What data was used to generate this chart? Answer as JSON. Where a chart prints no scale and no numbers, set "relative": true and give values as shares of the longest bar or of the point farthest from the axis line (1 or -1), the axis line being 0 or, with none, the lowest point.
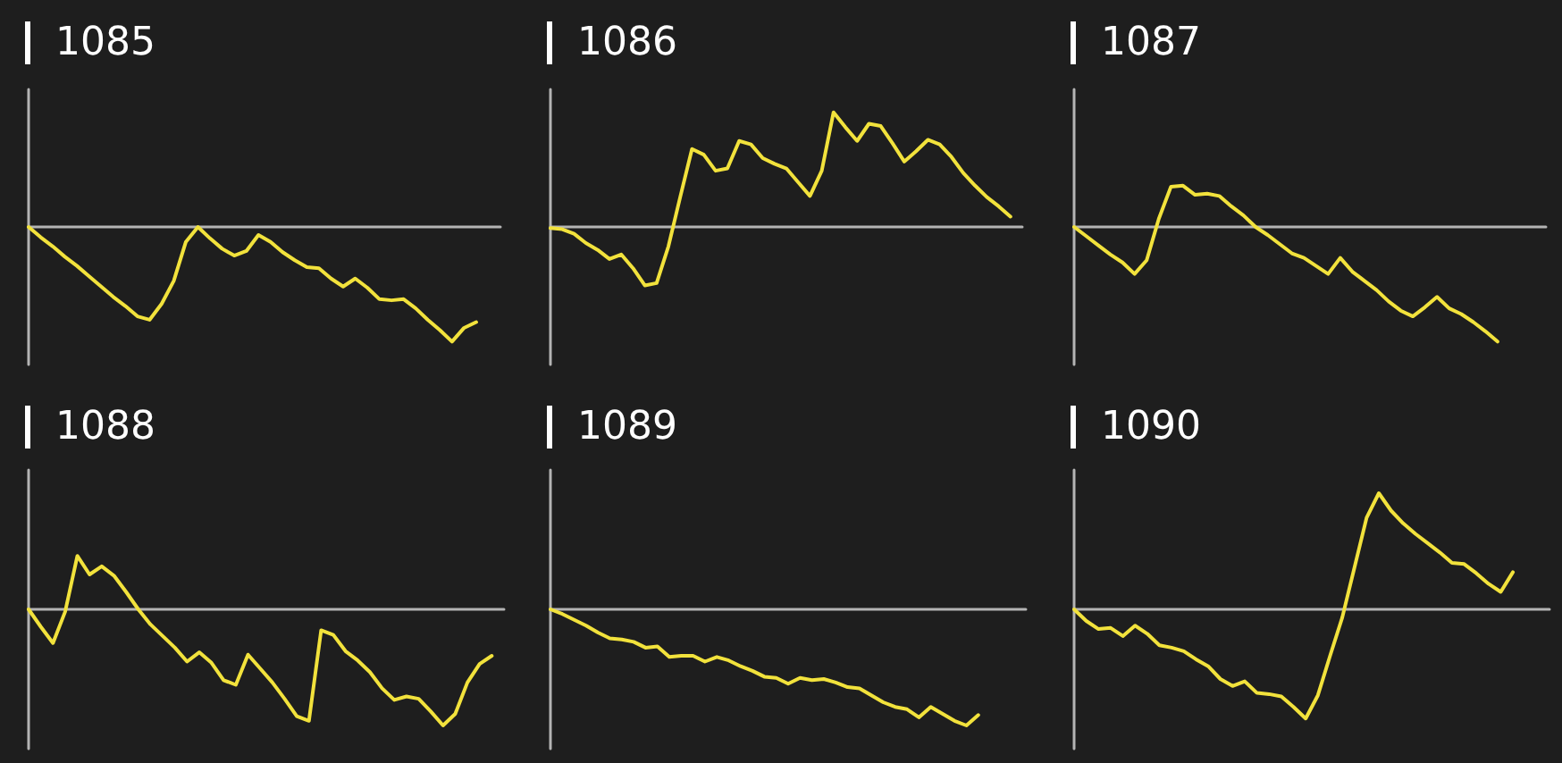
{
  "chart_data": [
    {
      "type": "line",
      "title": "1085",
      "relative": true,
      "categories": [
        null,
        null,
        null,
        null,
        null,
        null,
        null,
        null,
        null,
        null,
        null,
        null,
        null,
        null,
        null,
        null,
        null,
        null,
        null,
        null,
        null,
        null,
        null,
        null,
        null,
        null,
        null,
        null,
        null,
        null,
        null,
        null,
        null,
        null,
        null,
        null,
        null,
        null,
        null,
        null
      ],
      "series": [
        {
          "color": "#f2e23c",
          "values": [
            0,
            -0.09,
            -0.17,
            -0.26,
            -0.34,
            -0.43,
            -0.52,
            -0.61,
            -0.69,
            -0.78,
            -0.81,
            -0.67,
            -0.47,
            -0.13,
            0,
            -0.1,
            -0.19,
            -0.25,
            -0.21,
            -0.07,
            -0.13,
            -0.22,
            -0.29,
            -0.35,
            -0.36,
            -0.45,
            -0.52,
            -0.45,
            -0.53,
            -0.63,
            -0.64,
            -0.63,
            -0.71,
            -0.81,
            -0.9,
            -1,
            -0.88,
            -0.83,
            null,
            null
          ]
        }
      ]
    },
    {
      "type": "line",
      "title": "1086",
      "relative": true,
      "categories": [
        null,
        null,
        null,
        null,
        null,
        null,
        null,
        null,
        null,
        null,
        null,
        null,
        null,
        null,
        null,
        null,
        null,
        null,
        null,
        null,
        null,
        null,
        null,
        null,
        null,
        null,
        null,
        null,
        null,
        null,
        null,
        null,
        null,
        null,
        null,
        null,
        null,
        null,
        null,
        null,
        null
      ],
      "series": [
        {
          "color": "#f2e23c",
          "values": [
            -0.01,
            -0.02,
            -0.06,
            -0.14,
            -0.2,
            -0.28,
            -0.24,
            -0.36,
            -0.51,
            -0.49,
            -0.17,
            0.26,
            0.68,
            0.63,
            0.49,
            0.51,
            0.75,
            0.72,
            0.6,
            0.55,
            0.51,
            0.39,
            0.27,
            0.49,
            1,
            0.87,
            0.75,
            0.9,
            0.88,
            0.73,
            0.57,
            0.66,
            0.76,
            0.72,
            0.61,
            0.47,
            0.36,
            0.26,
            0.18,
            0.09,
            null
          ]
        }
      ]
    },
    {
      "type": "line",
      "title": "1087",
      "relative": true,
      "categories": [
        null,
        null,
        null,
        null,
        null,
        null,
        null,
        null,
        null,
        null,
        null,
        null,
        null,
        null,
        null,
        null,
        null,
        null,
        null,
        null,
        null,
        null,
        null,
        null,
        null,
        null,
        null,
        null,
        null,
        null,
        null,
        null,
        null,
        null,
        null,
        null,
        null,
        null,
        null,
        null
      ],
      "series": [
        {
          "color": "#f2e23c",
          "values": [
            0,
            -0.08,
            -0.16,
            -0.24,
            -0.31,
            -0.41,
            -0.29,
            0.07,
            0.35,
            0.36,
            0.28,
            0.29,
            0.27,
            0.18,
            0.1,
            0,
            -0.07,
            -0.15,
            -0.23,
            -0.27,
            -0.34,
            -0.41,
            -0.27,
            -0.39,
            -0.47,
            -0.55,
            -0.65,
            -0.73,
            -0.78,
            -0.7,
            -0.61,
            -0.71,
            -0.76,
            -0.83,
            -0.91,
            -1,
            null,
            null,
            null,
            null
          ]
        }
      ]
    },
    {
      "type": "line",
      "title": "1088",
      "relative": true,
      "categories": [
        null,
        null,
        null,
        null,
        null,
        null,
        null,
        null,
        null,
        null,
        null,
        null,
        null,
        null,
        null,
        null,
        null,
        null,
        null,
        null,
        null,
        null,
        null,
        null,
        null,
        null,
        null,
        null,
        null,
        null,
        null,
        null,
        null,
        null,
        null,
        null,
        null,
        null,
        null,
        null
      ],
      "series": [
        {
          "color": "#f2e23c",
          "values": [
            0,
            -0.15,
            -0.29,
            -0.02,
            0.46,
            0.3,
            0.37,
            0.29,
            0.15,
            0,
            -0.13,
            -0.23,
            -0.33,
            -0.45,
            -0.37,
            -0.46,
            -0.61,
            -0.65,
            -0.39,
            -0.51,
            -0.63,
            -0.77,
            -0.92,
            -0.96,
            -0.18,
            -0.22,
            -0.36,
            -0.44,
            -0.54,
            -0.68,
            -0.78,
            -0.75,
            -0.77,
            -0.88,
            -1,
            -0.9,
            -0.63,
            -0.47,
            -0.4,
            null
          ]
        }
      ]
    },
    {
      "type": "line",
      "title": "1089",
      "relative": true,
      "categories": [
        null,
        null,
        null,
        null,
        null,
        null,
        null,
        null,
        null,
        null,
        null,
        null,
        null,
        null,
        null,
        null,
        null,
        null,
        null,
        null,
        null,
        null,
        null,
        null,
        null,
        null,
        null,
        null,
        null,
        null,
        null,
        null,
        null,
        null,
        null,
        null,
        null,
        null,
        null,
        null,
        null
      ],
      "series": [
        {
          "color": "#f2e23c",
          "values": [
            0,
            -0.04,
            -0.09,
            -0.14,
            -0.2,
            -0.25,
            -0.26,
            -0.28,
            -0.33,
            -0.32,
            -0.41,
            -0.4,
            -0.4,
            -0.45,
            -0.41,
            -0.44,
            -0.49,
            -0.53,
            -0.58,
            -0.59,
            -0.64,
            -0.59,
            -0.61,
            -0.6,
            -0.63,
            -0.67,
            -0.68,
            -0.74,
            -0.8,
            -0.84,
            -0.86,
            -0.93,
            -0.84,
            -0.9,
            -0.96,
            -1,
            -0.91,
            null,
            null,
            null,
            null
          ]
        }
      ]
    },
    {
      "type": "line",
      "title": "1090",
      "relative": true,
      "categories": [
        null,
        null,
        null,
        null,
        null,
        null,
        null,
        null,
        null,
        null,
        null,
        null,
        null,
        null,
        null,
        null,
        null,
        null,
        null,
        null,
        null,
        null,
        null,
        null,
        null,
        null,
        null,
        null,
        null,
        null,
        null,
        null,
        null,
        null,
        null,
        null,
        null,
        null,
        null,
        null
      ],
      "series": [
        {
          "color": "#f2e23c",
          "values": [
            0,
            -0.1,
            -0.17,
            -0.16,
            -0.23,
            -0.14,
            -0.21,
            -0.31,
            -0.33,
            -0.36,
            -0.43,
            -0.49,
            -0.6,
            -0.66,
            -0.62,
            -0.72,
            -0.73,
            -0.75,
            -0.84,
            -0.94,
            -0.74,
            -0.4,
            -0.07,
            0.36,
            0.79,
            1,
            0.85,
            0.74,
            0.65,
            0.57,
            0.49,
            0.4,
            0.39,
            0.31,
            0.22,
            0.15,
            0.32,
            null,
            null,
            null
          ]
        }
      ]
    }
  ]
}
